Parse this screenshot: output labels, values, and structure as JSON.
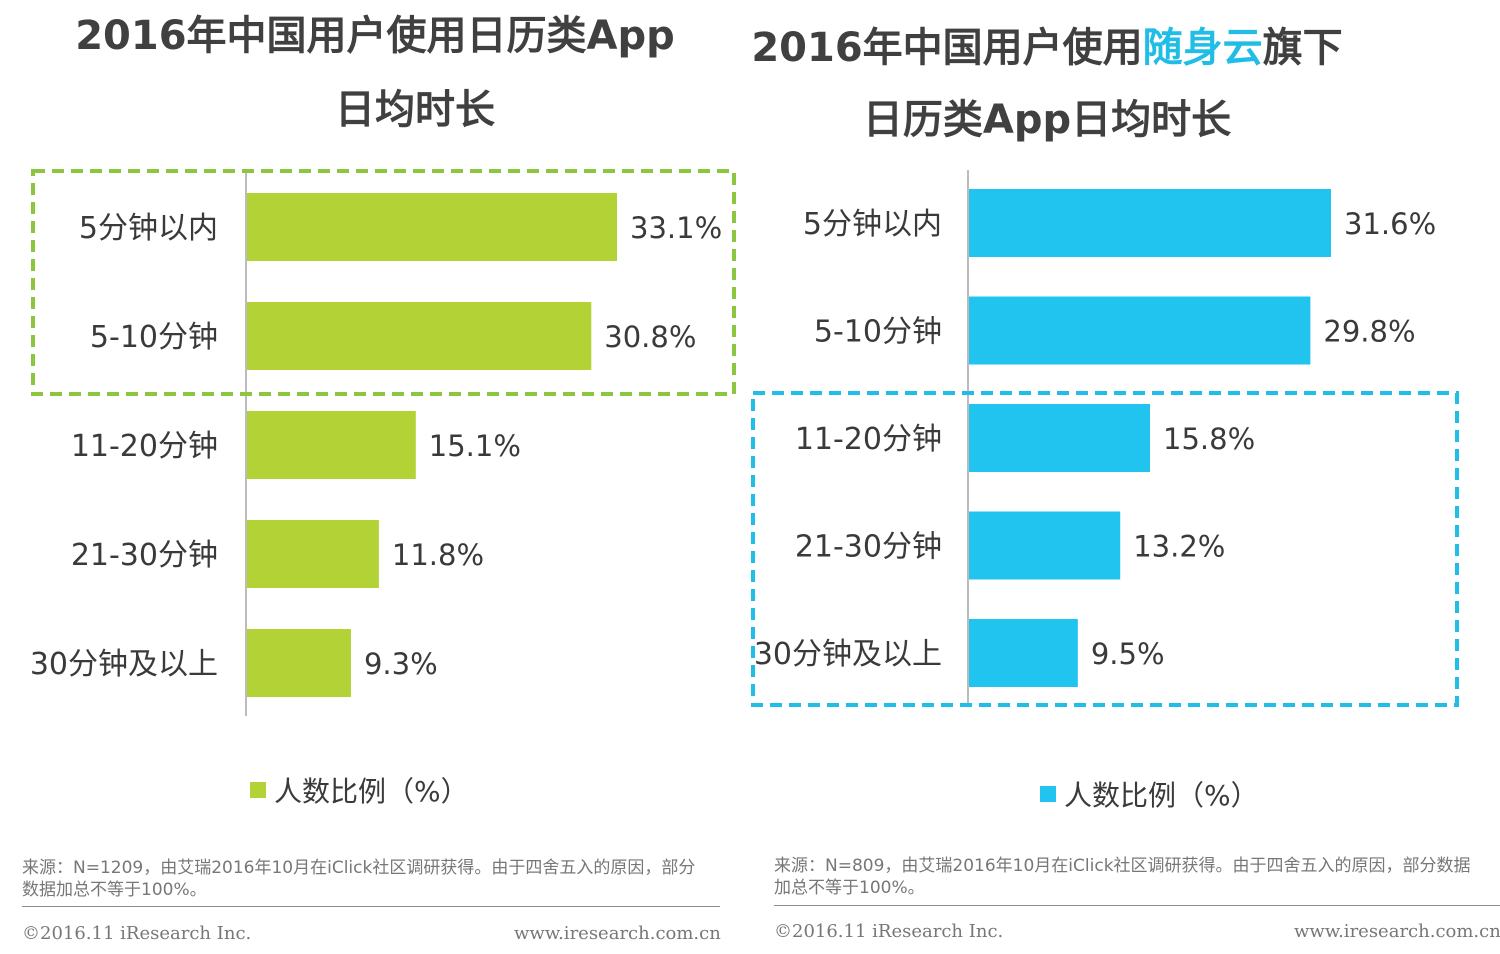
{
  "chart_data": [
    {
      "type": "bar",
      "orientation": "horizontal",
      "title_line1": "2016年中国用户使用日历类App",
      "title_line2": "日均时长",
      "categories": [
        "5分钟以内",
        "5-10分钟",
        "11-20分钟",
        "21-30分钟",
        "30分钟及以上"
      ],
      "values": [
        33.1,
        30.8,
        15.1,
        11.8,
        9.3
      ],
      "value_labels": [
        "33.1%",
        "30.8%",
        "15.1%",
        "11.8%",
        "9.3%"
      ],
      "series_name": "人数比例（%）",
      "color": "#b2d235",
      "highlight_color": "#8cc63f",
      "highlight_categories": [
        "5分钟以内",
        "5-10分钟"
      ],
      "xlim": [
        0,
        40
      ]
    },
    {
      "type": "bar",
      "orientation": "horizontal",
      "title_line1_pre": "2016年中国用户使用",
      "title_line1_hl": "随身云",
      "title_line1_post": "旗下",
      "title_line2": "日历类App日均时长",
      "categories": [
        "5分钟以内",
        "5-10分钟",
        "11-20分钟",
        "21-30分钟",
        "30分钟及以上"
      ],
      "values": [
        31.6,
        29.8,
        15.8,
        13.2,
        9.5
      ],
      "value_labels": [
        "31.6%",
        "29.8%",
        "15.8%",
        "13.2%",
        "9.5%"
      ],
      "series_name": "人数比例（%）",
      "color": "#20c4ee",
      "highlight_color": "#20bde6",
      "highlight_categories": [
        "11-20分钟",
        "21-30分钟",
        "30分钟及以上"
      ],
      "xlim": [
        0,
        40
      ]
    }
  ],
  "footer_left": {
    "source": "来源：N=1209，由艾瑞2016年10月在iClick社区调研获得。由于四舍五入的原因，部分数据加总不等于100%。",
    "copyright": "©2016.11 iResearch Inc.",
    "url": "www.iresearch.com.cn"
  },
  "footer_right": {
    "source": "来源：N=809，由艾瑞2016年10月在iClick社区调研获得。由于四舍五入的原因，部分数据加总不等于100%。",
    "copyright": "©2016.11 iResearch Inc.",
    "url": "www.iresearch.com.cn"
  }
}
